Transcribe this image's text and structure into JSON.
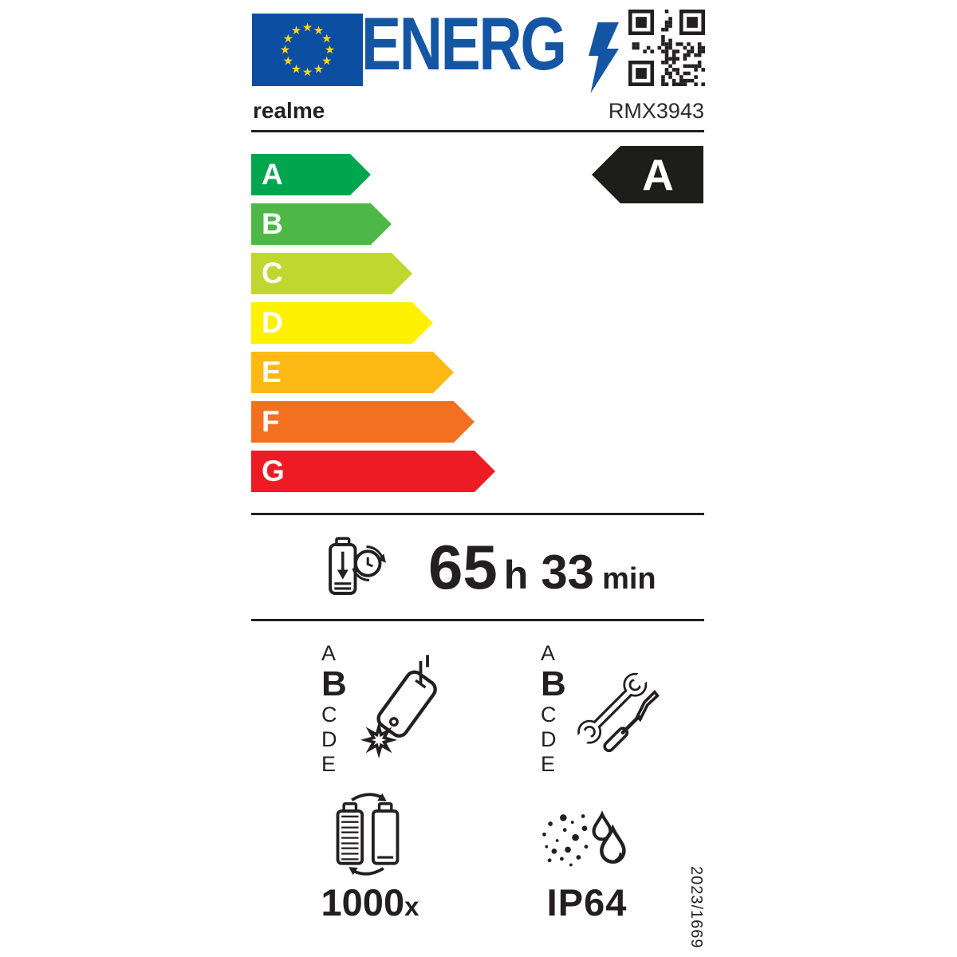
{
  "colors": {
    "flag_blue": "#0b4ea2",
    "logo_blue": "#1456a4",
    "star_yellow": "#ffd617",
    "indicator_black": "#1d1d1b",
    "ink": "#231f20"
  },
  "header": {
    "logo_text": "ENERG",
    "brand": "realme",
    "model": "RMX3943"
  },
  "efficiency": {
    "classes": [
      {
        "label": "A",
        "color": "#00a54f"
      },
      {
        "label": "B",
        "color": "#4db848"
      },
      {
        "label": "C",
        "color": "#bfd72f"
      },
      {
        "label": "D",
        "color": "#fff101"
      },
      {
        "label": "E",
        "color": "#fdb913"
      },
      {
        "label": "F",
        "color": "#f37021"
      },
      {
        "label": "G",
        "color": "#ed1c24"
      }
    ],
    "rating": "A"
  },
  "battery_endurance": {
    "hours": "65",
    "hours_unit": "h",
    "minutes": "33",
    "minutes_unit": "min"
  },
  "drop_resistance": {
    "scale": [
      "A",
      "B",
      "C",
      "D",
      "E"
    ],
    "rating": "B"
  },
  "repairability": {
    "scale": [
      "A",
      "B",
      "C",
      "D",
      "E"
    ],
    "rating": "B"
  },
  "battery_cycles": {
    "count": "1000",
    "suffix": "x"
  },
  "ingress_protection": {
    "rating": "IP64"
  },
  "regulation_number": "2023/1669"
}
